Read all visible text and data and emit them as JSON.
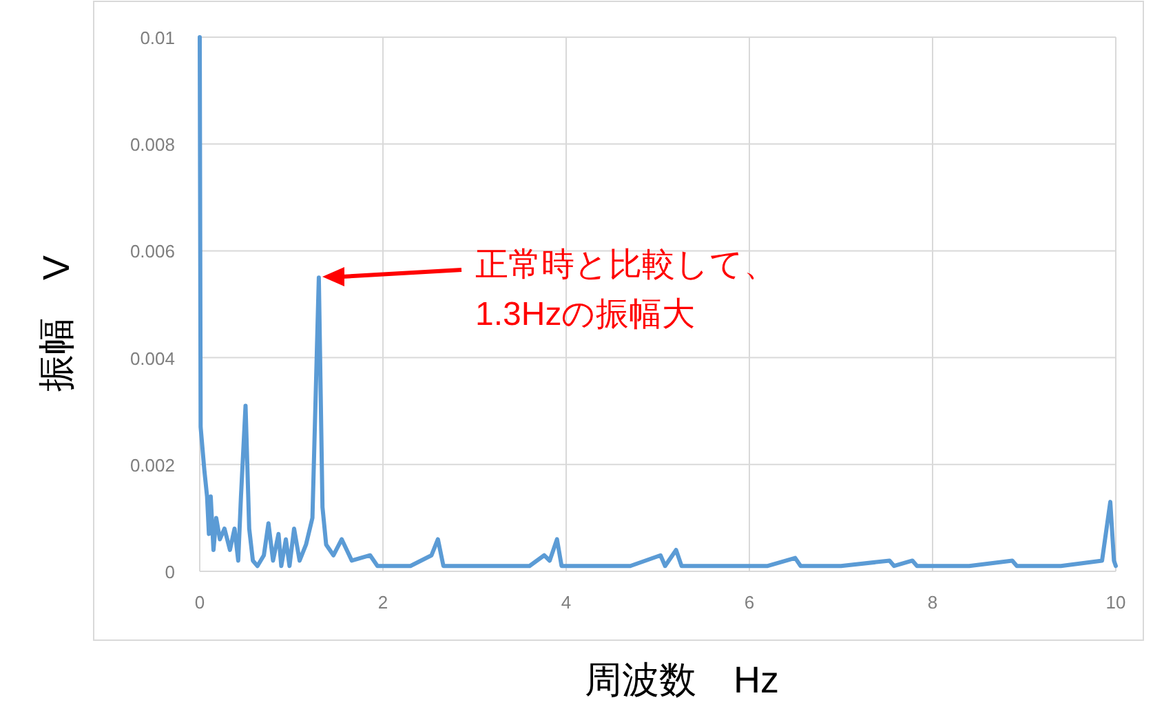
{
  "chart_data": {
    "type": "line",
    "xlabel": "周波数　Hz",
    "ylabel": "振幅　V",
    "annotations": [
      "正常時と比較して、\n1.3Hzの振幅大"
    ],
    "xlim": [
      0,
      10
    ],
    "ylim": [
      0,
      0.01
    ],
    "xticks": [
      0,
      2,
      4,
      6,
      8,
      10
    ],
    "yticks": [
      0,
      0.002,
      0.004,
      0.006,
      0.008,
      0.01
    ],
    "grid": true,
    "marker": "none",
    "line_style": "solid",
    "series": [
      {
        "color": "#5b9bd5",
        "x": [
          0,
          0.01,
          0.05,
          0.08,
          0.1,
          0.12,
          0.15,
          0.18,
          0.22,
          0.27,
          0.33,
          0.38,
          0.42,
          0.45,
          0.5,
          0.54,
          0.58,
          0.63,
          0.7,
          0.75,
          0.8,
          0.86,
          0.89,
          0.94,
          0.98,
          1.03,
          1.09,
          1.16,
          1.23,
          1.3,
          1.34,
          1.38,
          1.46,
          1.55,
          1.66,
          1.86,
          1.94,
          2.3,
          2.53,
          2.6,
          2.66,
          3.0,
          3.3,
          3.6,
          3.76,
          3.82,
          3.9,
          3.95,
          4.3,
          4.7,
          5.03,
          5.08,
          5.2,
          5.26,
          5.8,
          6.2,
          6.5,
          6.56,
          7.0,
          7.53,
          7.58,
          7.78,
          7.83,
          8.4,
          8.87,
          8.92,
          9.4,
          9.85,
          9.94,
          9.98,
          10
        ],
        "values": [
          0.01,
          0.0027,
          0.0019,
          0.0014,
          0.0007,
          0.0014,
          0.0004,
          0.001,
          0.0006,
          0.0008,
          0.0004,
          0.0008,
          0.0002,
          0.0014,
          0.0031,
          0.0008,
          0.0002,
          0.0001,
          0.0003,
          0.0009,
          0.0002,
          0.0007,
          0.0001,
          0.0006,
          0.0001,
          0.0008,
          0.0002,
          0.0005,
          0.001,
          0.0055,
          0.0012,
          0.0005,
          0.0003,
          0.0006,
          0.0002,
          0.0003,
          0.0001,
          0.0001,
          0.0003,
          0.0006,
          0.0001,
          0.0001,
          0.0001,
          0.0001,
          0.0003,
          0.0002,
          0.0006,
          0.0001,
          0.0001,
          0.0001,
          0.0003,
          0.0001,
          0.0004,
          0.0001,
          0.0001,
          0.0001,
          0.00025,
          0.0001,
          0.0001,
          0.0002,
          0.0001,
          0.0002,
          0.0001,
          0.0001,
          0.0002,
          0.0001,
          0.0001,
          0.0002,
          0.0013,
          0.0002,
          0.0001
        ]
      }
    ]
  }
}
